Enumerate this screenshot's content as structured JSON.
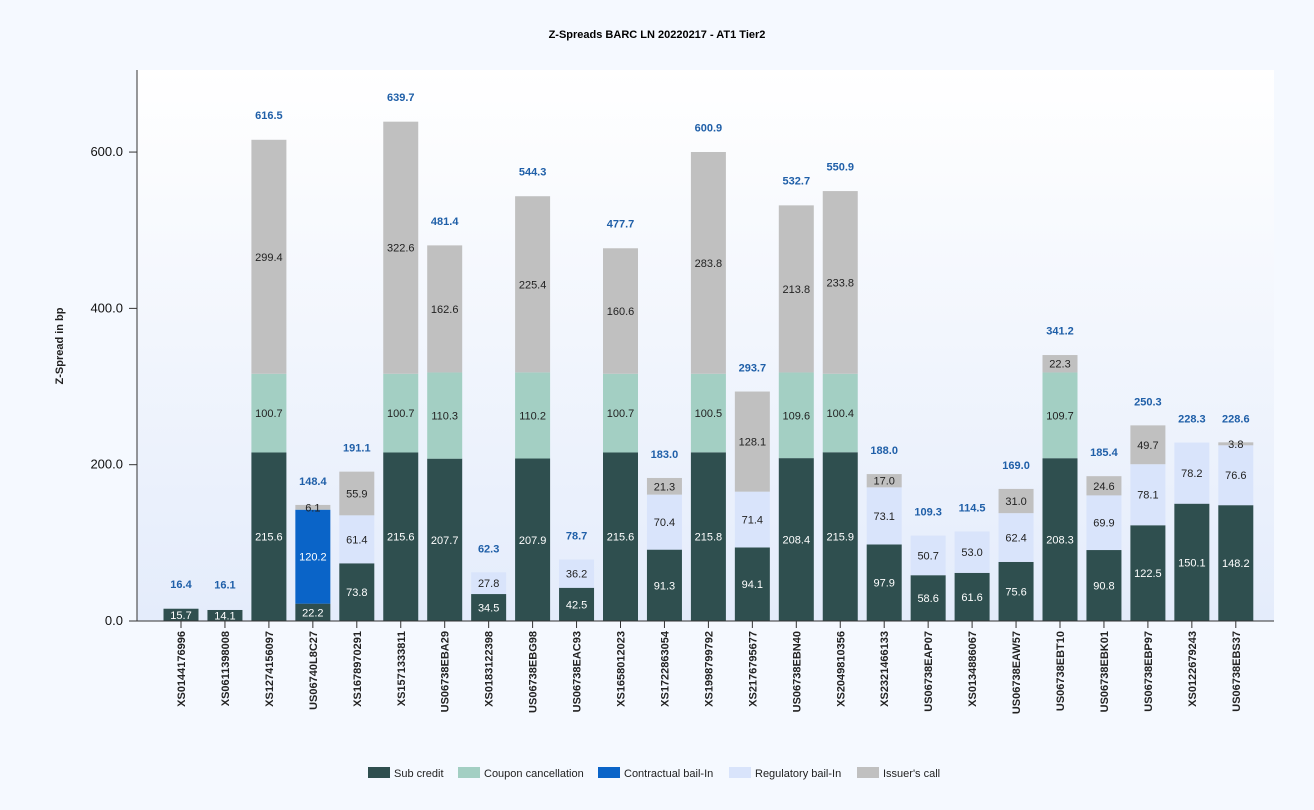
{
  "chart_data": {
    "type": "bar",
    "stacked": true,
    "title": "Z-Spreads BARC LN 20220217 - AT1 Tier2",
    "ylabel": "Z-Spread in bp",
    "xlabel": "",
    "ylim": [
      0,
      705
    ],
    "yticks": [
      "0.0",
      "200.0",
      "400.0",
      "600.0"
    ],
    "legend_position": "bottom",
    "categories": [
      "XS0144176996",
      "XS0611398008",
      "XS1274156097",
      "US06740L8C27",
      "XS1678970291",
      "XS1571333811",
      "US06738EBA29",
      "XS0183122398",
      "US06738EBG98",
      "US06738EAC93",
      "XS1658012023",
      "XS1722863054",
      "XS1998799792",
      "XS2176795677",
      "US06738EBN40",
      "XS2049810356",
      "XS2321466133",
      "US06738EAP07",
      "XS0134886067",
      "US06738EAW57",
      "US06738EBT10",
      "US06738EBK01",
      "US06738EBP97",
      "XS0122679243",
      "US06738EBS37"
    ],
    "series": [
      {
        "name": "Sub credit",
        "color": "#2f4f4f",
        "label_color": "#ffffff",
        "values": [
          15.7,
          14.1,
          215.6,
          22.2,
          73.8,
          215.6,
          207.7,
          34.5,
          207.9,
          42.5,
          215.6,
          91.3,
          215.8,
          94.1,
          208.4,
          215.9,
          97.9,
          58.6,
          61.6,
          75.6,
          208.3,
          90.8,
          122.5,
          150.1,
          148.2
        ],
        "labels": [
          "15.7",
          "14.1",
          "215.6",
          "22.2",
          "73.8",
          "215.6",
          "207.7",
          "34.5",
          "207.9",
          "42.5",
          "215.6",
          "91.3",
          "215.8",
          "94.1",
          "208.4",
          "215.9",
          "97.9",
          "58.6",
          "61.6",
          "75.6",
          "208.3",
          "90.8",
          "122.5",
          "150.1",
          "148.2"
        ]
      },
      {
        "name": "Coupon cancellation",
        "color": "#a3cfc3",
        "label_color": "#222222",
        "values": [
          0,
          0,
          100.7,
          0,
          0,
          100.7,
          110.3,
          0,
          110.2,
          0,
          100.7,
          0,
          100.5,
          0,
          109.6,
          100.4,
          0,
          0,
          0,
          0,
          109.7,
          0,
          0,
          0,
          0
        ],
        "labels": [
          "",
          "",
          "100.7",
          "",
          "",
          "100.7",
          "110.3",
          "",
          "110.2",
          "",
          "100.7",
          "",
          "100.5",
          "",
          "109.6",
          "100.4",
          "",
          "",
          "",
          "",
          "109.7",
          "",
          "",
          "",
          ""
        ]
      },
      {
        "name": "Contractual bail-In",
        "color": "#0a64c8",
        "label_color": "#ffffff",
        "values": [
          0,
          0,
          0,
          120.2,
          0,
          0,
          0,
          0,
          0,
          0,
          0,
          0,
          0,
          0,
          0,
          0,
          0,
          0,
          0,
          0,
          0,
          0,
          0,
          0,
          0
        ],
        "labels": [
          "",
          "",
          "",
          "120.2",
          "",
          "",
          "",
          "",
          "",
          "",
          "",
          "",
          "",
          "",
          "",
          "",
          "",
          "",
          "",
          "",
          "",
          "",
          "",
          "",
          ""
        ]
      },
      {
        "name": "Regulatory bail-In",
        "color": "#d9e4fb",
        "label_color": "#222222",
        "values": [
          0,
          0,
          0,
          0,
          61.4,
          0,
          0,
          27.8,
          0,
          36.2,
          0,
          70.4,
          0,
          71.4,
          0,
          0,
          73.1,
          50.7,
          53.0,
          62.4,
          0,
          69.9,
          78.1,
          78.2,
          76.6
        ],
        "labels": [
          "",
          "",
          "",
          "",
          "61.4",
          "",
          "",
          "27.8",
          "",
          "36.2",
          "",
          "70.4",
          "",
          "71.4",
          "",
          "",
          "73.1",
          "50.7",
          "53.0",
          "62.4",
          "",
          "69.9",
          "78.1",
          "78.2",
          "76.6"
        ]
      },
      {
        "name": "Issuer's call",
        "color": "#c0c0c0",
        "label_color": "#222222",
        "values": [
          0,
          0,
          299.4,
          6.1,
          55.9,
          322.6,
          162.6,
          0,
          225.4,
          0,
          160.6,
          21.3,
          283.8,
          128.1,
          213.8,
          233.8,
          17.0,
          0,
          0,
          31.0,
          22.3,
          24.6,
          49.7,
          0,
          3.8
        ],
        "labels": [
          "",
          "",
          "299.4",
          "6.1",
          "55.9",
          "322.6",
          "162.6",
          "",
          "225.4",
          "",
          "160.6",
          "21.3",
          "283.8",
          "128.1",
          "213.8",
          "233.8",
          "17.0",
          "",
          "",
          "31.0",
          "22.3",
          "24.6",
          "49.7",
          "",
          "3.8"
        ]
      }
    ],
    "totals": [
      16.4,
      16.1,
      616.5,
      148.4,
      191.1,
      639.7,
      481.4,
      62.3,
      544.3,
      78.7,
      477.7,
      183.0,
      600.9,
      293.7,
      532.7,
      550.9,
      188.0,
      109.3,
      114.5,
      169.0,
      341.2,
      185.4,
      250.3,
      228.3,
      228.6
    ],
    "total_labels": [
      "16.4",
      "16.1",
      "616.5",
      "148.4",
      "191.1",
      "639.7",
      "481.4",
      "62.3",
      "544.3",
      "78.7",
      "477.7",
      "183.0",
      "600.9",
      "293.7",
      "532.7",
      "550.9",
      "188.0",
      "109.3",
      "114.5",
      "169.0",
      "341.2",
      "185.4",
      "250.3",
      "228.3",
      "228.6"
    ],
    "total_label_color": "#1f5fa8"
  }
}
